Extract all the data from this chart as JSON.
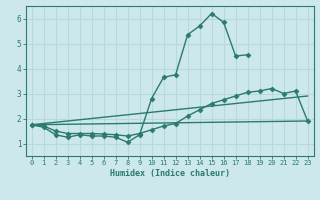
{
  "xlabel": "Humidex (Indice chaleur)",
  "bg_color": "#cce8ed",
  "grid_color": "#b8d8de",
  "line_color": "#2a7a6e",
  "xlim": [
    -0.5,
    23.5
  ],
  "ylim": [
    0.5,
    6.5
  ],
  "yticks": [
    1,
    2,
    3,
    4,
    5,
    6
  ],
  "xticks": [
    0,
    1,
    2,
    3,
    4,
    5,
    6,
    7,
    8,
    9,
    10,
    11,
    12,
    13,
    14,
    15,
    16,
    17,
    18,
    19,
    20,
    21,
    22,
    23
  ],
  "series": [
    {
      "x": [
        0,
        1,
        2,
        3,
        4,
        5,
        6,
        7,
        8,
        9,
        10,
        11,
        12,
        13,
        14,
        15,
        16,
        17,
        18
      ],
      "y": [
        1.75,
        1.65,
        1.35,
        1.25,
        1.35,
        1.3,
        1.3,
        1.25,
        1.05,
        1.35,
        2.8,
        3.65,
        3.75,
        5.35,
        5.7,
        6.2,
        5.85,
        4.5,
        4.55
      ],
      "marker": "D",
      "markersize": 2.5,
      "linewidth": 1.0
    },
    {
      "x": [
        0,
        1,
        2,
        3,
        4,
        5,
        6,
        7,
        8,
        9,
        10,
        11,
        12,
        13,
        14,
        15,
        16,
        17,
        18,
        19,
        20,
        21,
        22,
        23
      ],
      "y": [
        1.75,
        1.7,
        1.5,
        1.4,
        1.4,
        1.4,
        1.38,
        1.35,
        1.3,
        1.4,
        1.55,
        1.7,
        1.8,
        2.1,
        2.35,
        2.6,
        2.75,
        2.9,
        3.05,
        3.1,
        3.2,
        3.0,
        3.1,
        1.9
      ],
      "marker": "D",
      "markersize": 2.5,
      "linewidth": 1.0
    },
    {
      "x": [
        0,
        23
      ],
      "y": [
        1.75,
        2.9
      ],
      "marker": null,
      "markersize": 0,
      "linewidth": 1.0
    },
    {
      "x": [
        0,
        23
      ],
      "y": [
        1.75,
        1.9
      ],
      "marker": null,
      "markersize": 0,
      "linewidth": 1.0
    }
  ]
}
